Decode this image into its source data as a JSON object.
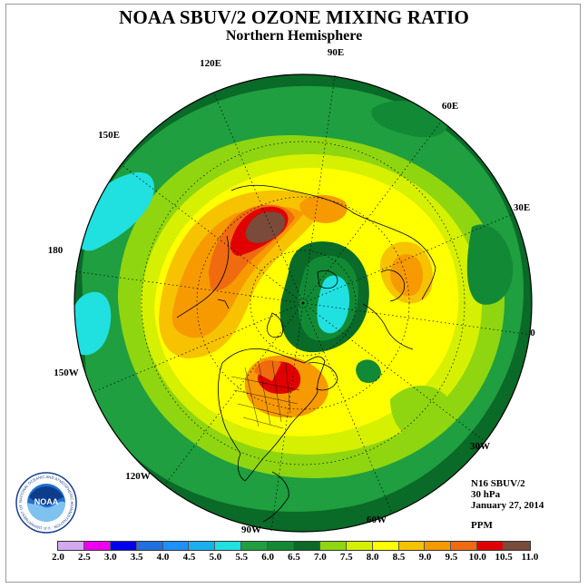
{
  "header": {
    "title": "NOAA SBUV/2 OZONE MIXING RATIO",
    "subtitle": "Northern Hemisphere"
  },
  "map": {
    "longitude_labels": [
      "90E",
      "60E",
      "30E",
      "0",
      "30W",
      "60W",
      "90W",
      "120W",
      "150W",
      "180",
      "150E",
      "120E"
    ],
    "ocean_color": "#1f8f3f"
  },
  "info": {
    "instrument": "N16 SBUV/2",
    "level": "30 hPa",
    "date": "January 27, 2014",
    "units": "PPM"
  },
  "colorbar": {
    "labels": [
      "2.0",
      "2.5",
      "3.0",
      "3.5",
      "4.0",
      "4.5",
      "5.0",
      "5.5",
      "6.0",
      "6.5",
      "7.0",
      "7.5",
      "8.0",
      "8.5",
      "9.0",
      "9.5",
      "10.0",
      "10.5",
      "11.0"
    ],
    "colors": [
      "#b57ee6",
      "#d2a8ee",
      "#ee00ee",
      "#0000ee",
      "#2070e0",
      "#1e90ff",
      "#1ab0f0",
      "#20e0e0",
      "#1f9f3f",
      "#128a35",
      "#0a6a28",
      "#8fd610",
      "#d5f000",
      "#ffff00",
      "#f7c200",
      "#f79a00",
      "#f06a10",
      "#e00000",
      "#7a4a3a"
    ]
  },
  "logo": {
    "text": "NOAA",
    "ring_text": "NATIONAL OCEANIC AND ATMOSPHERIC ADMINISTRATION · U.S. DEPARTMENT OF COMMERCE"
  }
}
